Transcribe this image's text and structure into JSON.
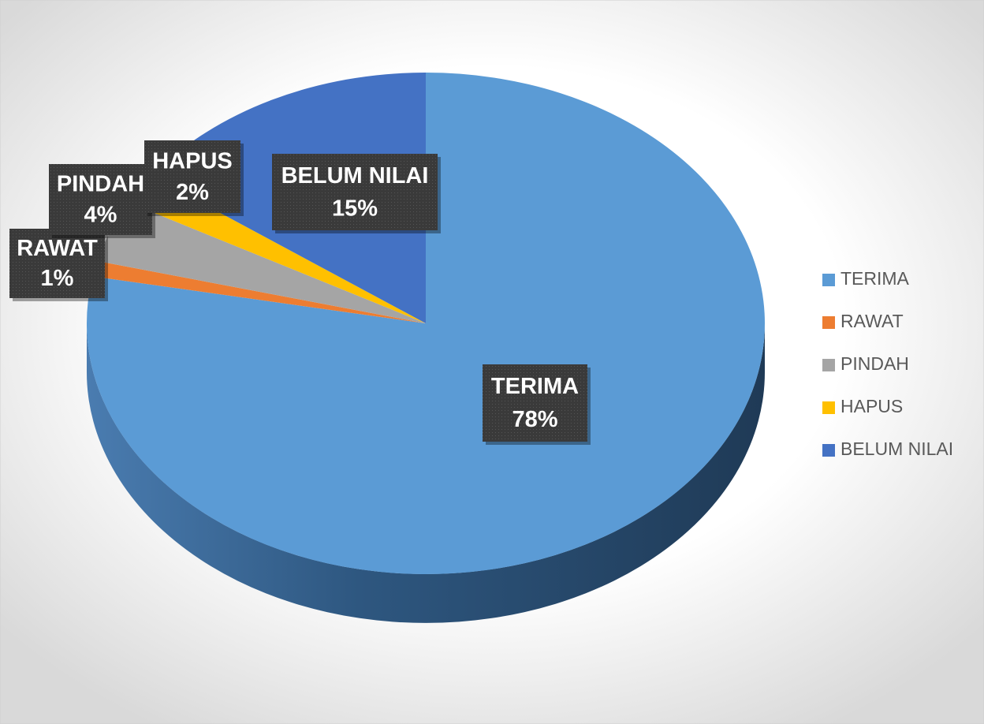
{
  "chart_data": {
    "type": "pie",
    "categories": [
      "TERIMA",
      "RAWAT",
      "PINDAH",
      "HAPUS",
      "BELUM NILAI"
    ],
    "values": [
      78,
      1,
      4,
      2,
      15
    ],
    "value_labels": [
      "78%",
      "1%",
      "4%",
      "2%",
      "15%"
    ],
    "colors": [
      "#5b9bd5",
      "#ed7d31",
      "#a5a5a5",
      "#ffc000",
      "#4472c4"
    ],
    "legend": "right"
  }
}
